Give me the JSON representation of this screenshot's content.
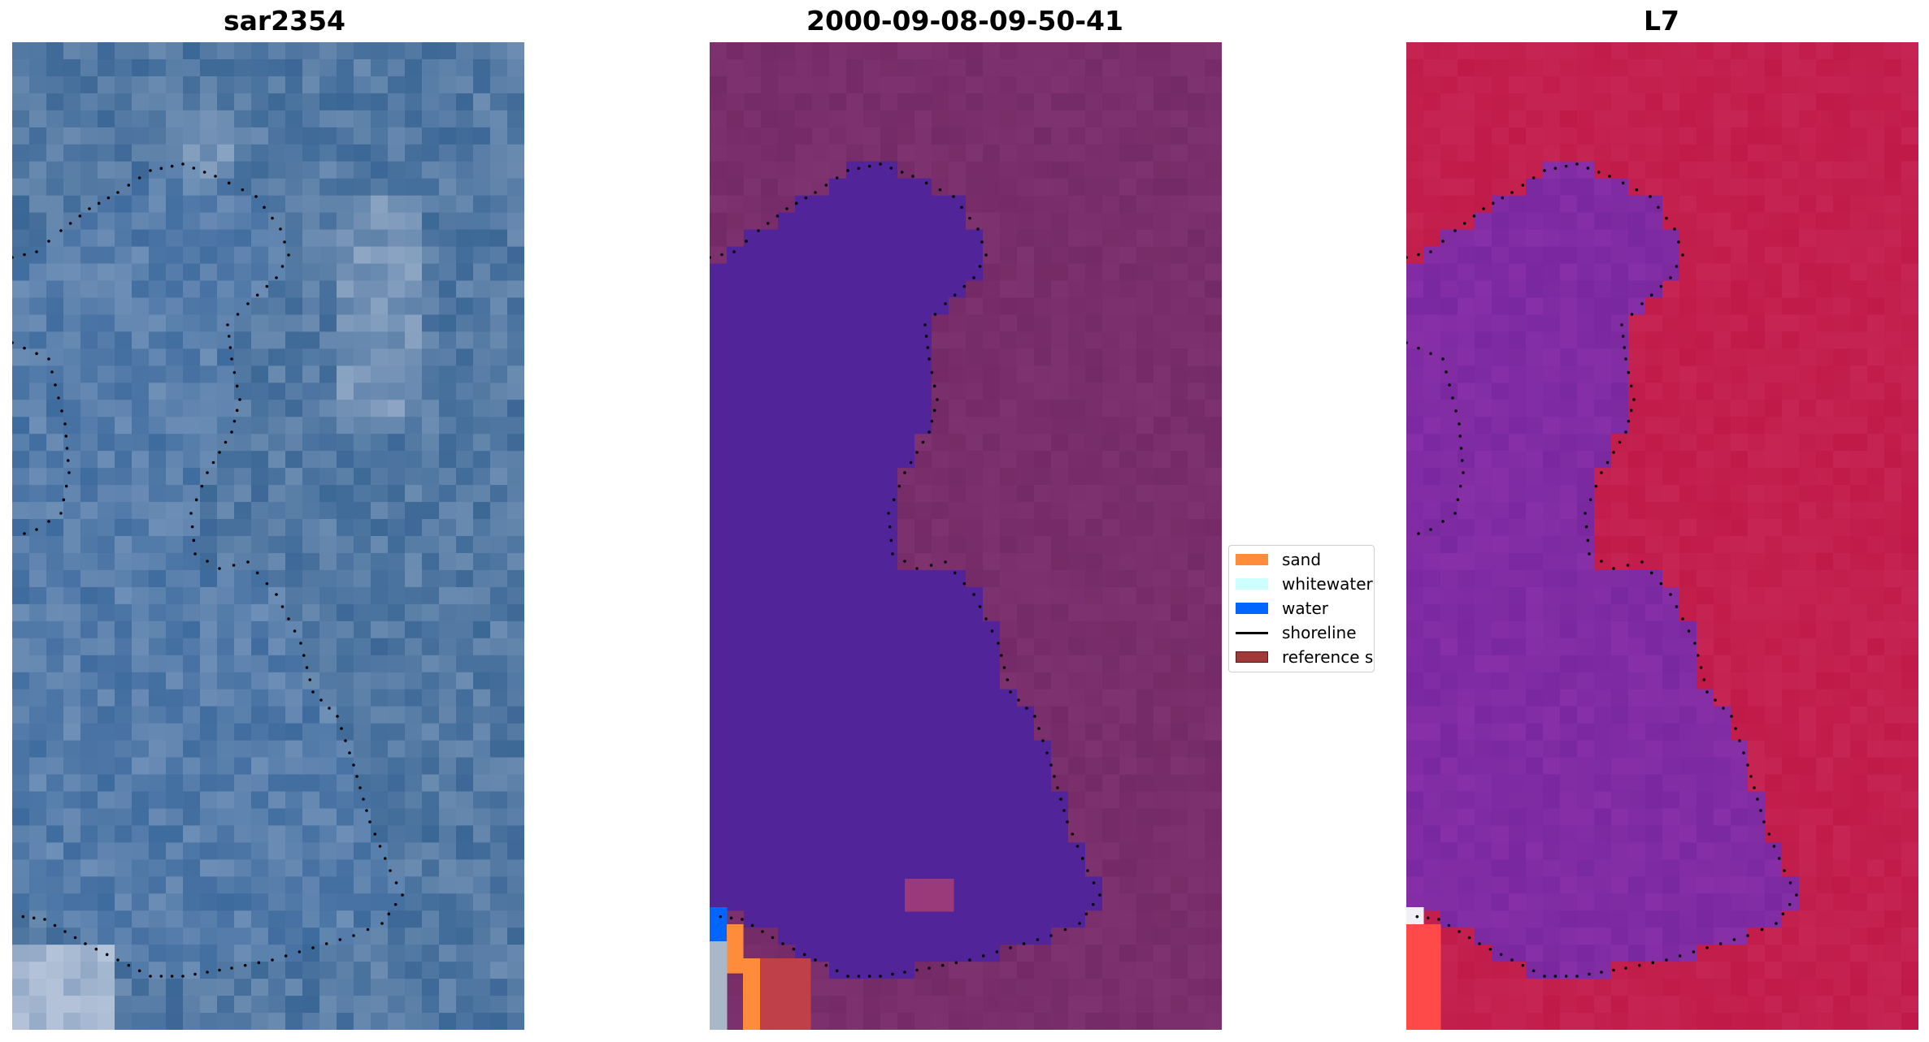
{
  "panels": {
    "left": {
      "title": "sar2354",
      "icon": "satellite-image"
    },
    "middle": {
      "title": "2000-09-08-09-50-41",
      "icon": "classified-image"
    },
    "right": {
      "title": "L7",
      "icon": "index-image"
    }
  },
  "legend": {
    "items": [
      {
        "label": "sand",
        "color": "#ff8c3a",
        "kind": "patch"
      },
      {
        "label": "whitewater",
        "color": "#ccfffe",
        "kind": "patch"
      },
      {
        "label": "water",
        "color": "#0066ff",
        "kind": "patch"
      },
      {
        "label": "shoreline",
        "color": "#000000",
        "kind": "line"
      },
      {
        "label": "reference shor",
        "color": "#a03a3a",
        "kind": "patch"
      }
    ]
  },
  "colors": {
    "sat_base": "#3e6a9a",
    "water_class": "#52249a",
    "land_class": "#742a66",
    "index_land": "#c01a48",
    "index_water": "#7a28a0"
  }
}
